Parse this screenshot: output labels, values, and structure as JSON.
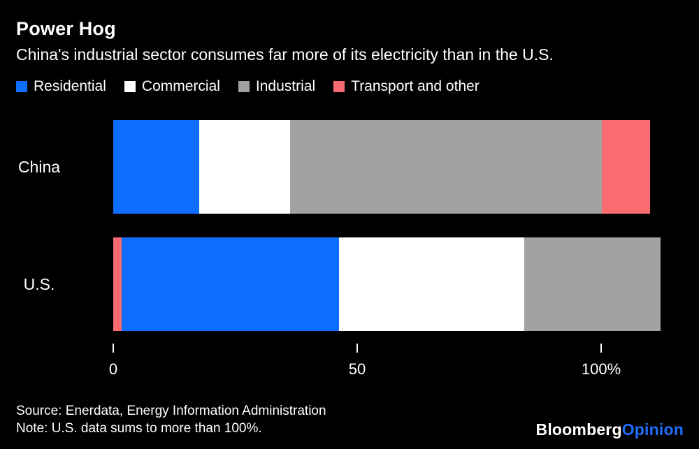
{
  "header": {
    "title": "Power Hog",
    "subtitle": "China's industrial sector consumes far more of its electricity than in the U.S."
  },
  "colors": {
    "background": "#000000",
    "text": "#ffffff",
    "residential_blue": "#0d6eff",
    "commercial_white": "#ffffff",
    "industrial_gray": "#a1a1a1",
    "transport_red": "#fa6b70",
    "opinion_blue": "#1f6fff"
  },
  "chart_data": {
    "type": "bar",
    "orientation": "horizontal",
    "stacked": true,
    "unit": "%",
    "xlim": [
      0,
      100
    ],
    "x_ticks": [
      0,
      50,
      100
    ],
    "x_tick_labels": [
      "0",
      "50",
      "100%"
    ],
    "grid": false,
    "legend_position": "top",
    "legend": [
      {
        "label": "Residential",
        "color": "#0d6eff"
      },
      {
        "label": "Commercial",
        "color": "#ffffff"
      },
      {
        "label": "Industrial",
        "color": "#a1a1a1"
      },
      {
        "label": "Transport and other",
        "color": "#fa6b70"
      }
    ],
    "categories": [
      "China",
      "U.S."
    ],
    "rows": [
      {
        "category": "China",
        "segments": [
          {
            "label": "Residential",
            "value": 16
          },
          {
            "label": "Commercial",
            "value": 17
          },
          {
            "label": "Industrial",
            "value": 58
          },
          {
            "label": "Transport and other",
            "value": 9
          }
        ]
      },
      {
        "category": "U.S.",
        "segments": [
          {
            "label": "Transport and other",
            "value": 1.5
          },
          {
            "label": "Residential",
            "value": 40.5
          },
          {
            "label": "Commercial",
            "value": 34.5
          },
          {
            "label": "Industrial",
            "value": 25.5
          }
        ]
      }
    ]
  },
  "footer": {
    "source": "Source: Enerdata, Energy Information Administration",
    "note": "Note: U.S. data sums to more than 100%."
  },
  "brand": {
    "bloomberg": "Bloomberg",
    "opinion": "Opinion"
  }
}
